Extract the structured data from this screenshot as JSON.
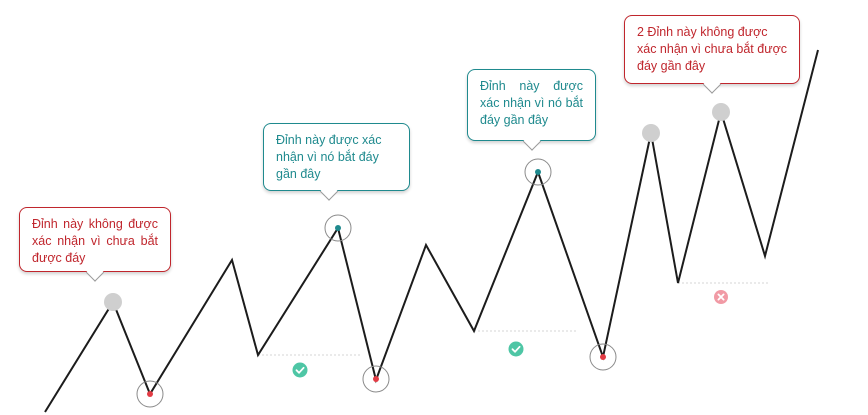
{
  "colors": {
    "line": "#1c1c1c",
    "peak_unconfirmed": "#cfcfcf",
    "confirmed_dot": "#1f8a8e",
    "low_dot": "#e23b44",
    "check_fill": "#4ec6a5",
    "cross_fill": "#f19aa5",
    "callout_red": "#c0262d",
    "callout_teal": "#1f8a8e"
  },
  "callouts": {
    "peak1": "Đỉnh này không được xác nhận vì chưa bắt được đáy",
    "peak2": "Đỉnh này được xác nhận vì nó bắt đáy gần đây",
    "peak3": "Đỉnh này được xác nhận vì nó bắt đáy gần đây",
    "peak4": "2 Đỉnh này không được xác nhận vì chưa bắt được đáy gần đây"
  },
  "icons": {
    "confirm": "check-circle-icon",
    "reject": "cross-circle-icon"
  }
}
